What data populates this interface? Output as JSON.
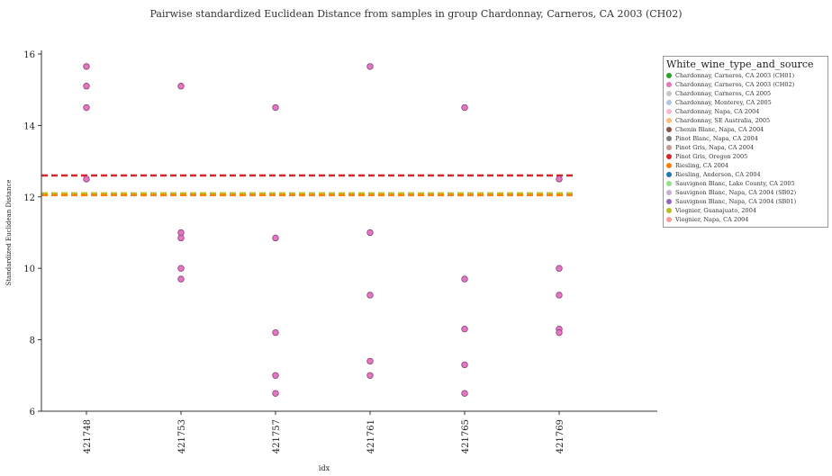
{
  "title": "Pairwise standardized Euclidean Distance from samples in group Chardonnay, Carneros, CA 2003 (CH02)",
  "chart_data": {
    "type": "scatter",
    "title": "Pairwise standardized Euclidean Distance from samples in group Chardonnay, Carneros, CA 2003 (CH02)",
    "xlabel": "idx",
    "ylabel": "Standardized Euclidean Distance",
    "categories": [
      "421748",
      "421753",
      "421757",
      "421761",
      "421765",
      "421769"
    ],
    "y_ticks": [
      6,
      8,
      10,
      12,
      14,
      16
    ],
    "ylim": [
      6,
      16
    ],
    "grid": false,
    "legend_position": "right",
    "point_color": "#e377c2",
    "series": [
      {
        "name": "Chardonnay, Carneros, CA 2003 (CH02)",
        "color": "#e377c2",
        "points": [
          {
            "x": "421748",
            "y": 15.65
          },
          {
            "x": "421748",
            "y": 15.1
          },
          {
            "x": "421748",
            "y": 14.5
          },
          {
            "x": "421748",
            "y": 12.5
          },
          {
            "x": "421753",
            "y": 15.1
          },
          {
            "x": "421753",
            "y": 11.0
          },
          {
            "x": "421753",
            "y": 10.85
          },
          {
            "x": "421753",
            "y": 10.0
          },
          {
            "x": "421753",
            "y": 9.7
          },
          {
            "x": "421757",
            "y": 14.5
          },
          {
            "x": "421757",
            "y": 10.85
          },
          {
            "x": "421757",
            "y": 8.2
          },
          {
            "x": "421757",
            "y": 7.0
          },
          {
            "x": "421757",
            "y": 6.5
          },
          {
            "x": "421761",
            "y": 15.65
          },
          {
            "x": "421761",
            "y": 11.0
          },
          {
            "x": "421761",
            "y": 9.25
          },
          {
            "x": "421761",
            "y": 7.4
          },
          {
            "x": "421761",
            "y": 7.0
          },
          {
            "x": "421765",
            "y": 14.5
          },
          {
            "x": "421765",
            "y": 9.7
          },
          {
            "x": "421765",
            "y": 8.3
          },
          {
            "x": "421765",
            "y": 7.3
          },
          {
            "x": "421765",
            "y": 6.5
          },
          {
            "x": "421769",
            "y": 12.5
          },
          {
            "x": "421769",
            "y": 10.0
          },
          {
            "x": "421769",
            "y": 9.25
          },
          {
            "x": "421769",
            "y": 8.3
          },
          {
            "x": "421769",
            "y": 8.2
          }
        ]
      }
    ],
    "reference_lines": [
      {
        "y": 12.6,
        "color": "#d62728",
        "style": "dashed"
      },
      {
        "y": 12.1,
        "color": "#bcbd22",
        "style": "dashed"
      },
      {
        "y": 12.05,
        "color": "#ff7f0e",
        "style": "dashed"
      }
    ]
  },
  "legend": {
    "title": "White_wine_type_and_source",
    "items": [
      {
        "label": "Chardonnay, Carneros, CA 2003 (CH01)",
        "color": "#2ca02c"
      },
      {
        "label": "Chardonnay, Carneros, CA 2003 (CH02)",
        "color": "#e377c2"
      },
      {
        "label": "Chardonnay, Carneros, CA 2005",
        "color": "#c7c7c7"
      },
      {
        "label": "Chardonnay, Monterey, CA 2005",
        "color": "#aec7e8"
      },
      {
        "label": "Chardonnay, Napa, CA 2004",
        "color": "#f7b6d2"
      },
      {
        "label": "Chardonnay, SE Australia, 2005",
        "color": "#ffbb78"
      },
      {
        "label": "Chenin Blanc, Napa, CA 2004",
        "color": "#8c564b"
      },
      {
        "label": "Pinot Blanc, Napa, CA 2004",
        "color": "#7f7f7f"
      },
      {
        "label": "Pinot Gris, Napa, CA 2004",
        "color": "#c49c94"
      },
      {
        "label": "Pinot Gris, Oregon 2005",
        "color": "#d62728"
      },
      {
        "label": "Riesling, CA 2004",
        "color": "#ff7f0e"
      },
      {
        "label": "Riesling, Anderson, CA 2004",
        "color": "#1f77b4"
      },
      {
        "label": "Sauvignon Blanc, Lake County, CA 2005",
        "color": "#98df8a"
      },
      {
        "label": "Sauvignon Blanc, Napa, CA 2004 (SB02)",
        "color": "#c5b0d5"
      },
      {
        "label": "Sauvignon Blanc, Napa, CA 2004 (SB01)",
        "color": "#9467bd"
      },
      {
        "label": "Viognier, Guanajuato, 2004",
        "color": "#bcbd22"
      },
      {
        "label": "Viognier, Napa, CA 2004",
        "color": "#ff9896"
      }
    ]
  }
}
